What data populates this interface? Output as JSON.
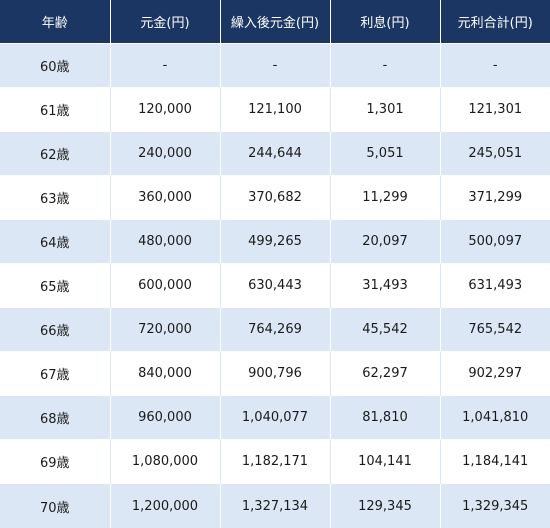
{
  "table": {
    "headers": [
      "年齢",
      "元金(円)",
      "繰入後元金(円)",
      "利息(円)",
      "元利合計(円)"
    ],
    "rows": [
      [
        "60歳",
        "-",
        "-",
        "-",
        "-"
      ],
      [
        "61歳",
        "120,000",
        "121,100",
        "1,301",
        "121,301"
      ],
      [
        "62歳",
        "240,000",
        "244,644",
        "5,051",
        "245,051"
      ],
      [
        "63歳",
        "360,000",
        "370,682",
        "11,299",
        "371,299"
      ],
      [
        "64歳",
        "480,000",
        "499,265",
        "20,097",
        "500,097"
      ],
      [
        "65歳",
        "600,000",
        "630,443",
        "31,493",
        "631,493"
      ],
      [
        "66歳",
        "720,000",
        "764,269",
        "45,542",
        "765,542"
      ],
      [
        "67歳",
        "840,000",
        "900,796",
        "62,297",
        "902,297"
      ],
      [
        "68歳",
        "960,000",
        "1,040,077",
        "81,810",
        "1,041,810"
      ],
      [
        "69歳",
        "1,080,000",
        "1,182,171",
        "104,141",
        "1,184,141"
      ],
      [
        "70歳",
        "1,200,000",
        "1,327,134",
        "129,345",
        "1,329,345"
      ]
    ]
  },
  "colors": {
    "header_bg": "#1b3663",
    "header_text": "#ffffff",
    "stripe_bg": "#dce7f6",
    "row_bg": "#ffffff"
  }
}
